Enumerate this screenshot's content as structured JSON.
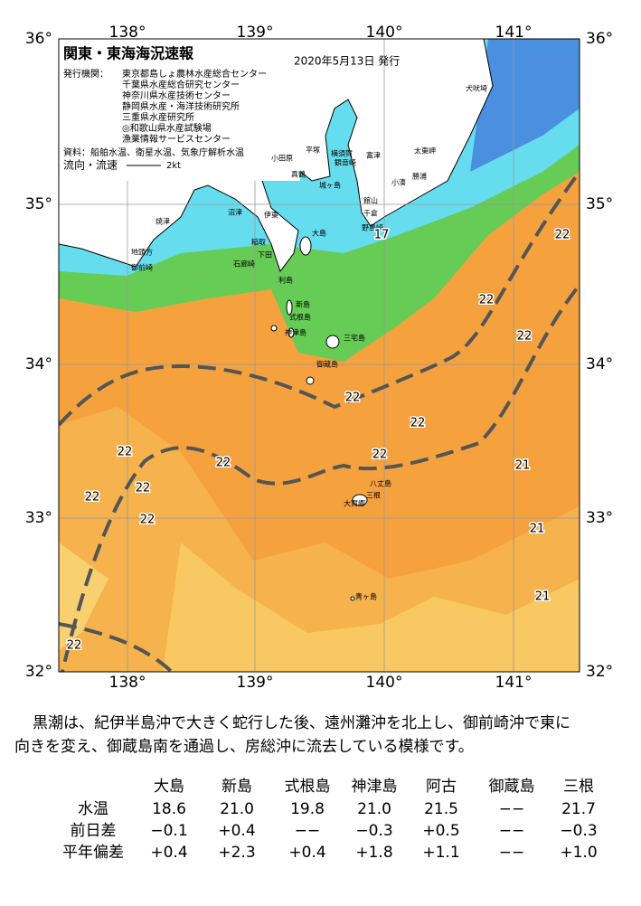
{
  "header": {
    "title": "関東・東海海況速報",
    "date": "2020年5月13日 発行",
    "agency_label": "発行機関：",
    "agencies": [
      "東京都島しょ農林水産総合センター",
      "千葉県水産総合研究センター",
      "神奈川県水産技術センター",
      "静岡県水産・海洋技術研究所",
      "三重県水産研究所",
      "◎和歌山県水産試験場",
      "漁業情報サービスセンター"
    ],
    "source": "資料：船舶水温、衛星水温、気象庁解析水温",
    "flow_label": "流向・流速",
    "flow_unit": "2kt"
  },
  "axes": {
    "lon": [
      "138°",
      "139°",
      "140°",
      "141°"
    ],
    "lat": [
      "36°",
      "35°",
      "34°",
      "33°",
      "32°"
    ]
  },
  "places": [
    "犬吠埼",
    "太東岬",
    "勝浦",
    "小湊",
    "館山",
    "千倉",
    "野島崎",
    "城ヶ島",
    "観音崎",
    "横須賀",
    "富津",
    "平塚",
    "小田原",
    "真鶴",
    "伊東",
    "沼津",
    "焼津",
    "稲取",
    "下田",
    "石廊崎",
    "地頭方",
    "御前崎",
    "大島",
    "利島",
    "新島",
    "式根島",
    "神津島",
    "三宅島",
    "御蔵島",
    "八丈島",
    "大賀郷",
    "三根",
    "青ヶ島"
  ],
  "isotherms": [
    "17",
    "22",
    "22",
    "22",
    "22",
    "22",
    "22",
    "22",
    "22",
    "22",
    "22",
    "22",
    "22",
    "21",
    "21",
    "21"
  ],
  "description": [
    "黒潮は、紀伊半島沖で大きく蛇行した後、遠州灘沖を北上し、御前崎沖で東に",
    "向きを変え、御蔵島南を通過し、房総沖に流去している模様です。"
  ],
  "table": {
    "columns": [
      "大島",
      "新島",
      "式根島",
      "神津島",
      "阿古",
      "御蔵島",
      "三根"
    ],
    "rows": [
      {
        "label": "水温",
        "cells": [
          "18.6",
          "21.0",
          "19.8",
          "21.0",
          "21.5",
          "−−",
          "21.7"
        ]
      },
      {
        "label": "前日差",
        "cells": [
          "−0.1",
          "+0.4",
          "−−",
          "−0.3",
          "+0.5",
          "−−",
          "−0.3"
        ]
      },
      {
        "label": "平年偏差",
        "cells": [
          "+0.4",
          "+2.3",
          "+0.4",
          "+1.8",
          "+1.1",
          "−−",
          "+1.0"
        ]
      }
    ]
  }
}
